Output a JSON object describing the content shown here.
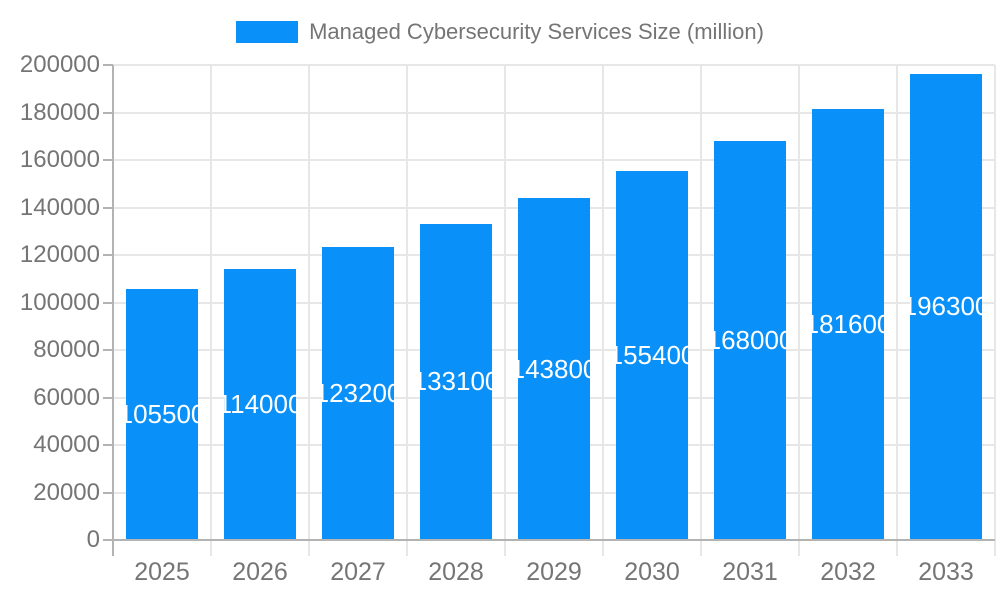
{
  "chart_data": {
    "type": "bar",
    "title": "Managed Cybersecurity Services Size (million)",
    "legend_position": "top",
    "legend_entries": [
      "Managed Cybersecurity Services Size (million)"
    ],
    "categories": [
      "2025",
      "2026",
      "2027",
      "2028",
      "2029",
      "2030",
      "2031",
      "2032",
      "2033"
    ],
    "values": [
      105500,
      114000,
      123200,
      133100,
      143800,
      155400,
      168000,
      181600,
      196300
    ],
    "xlabel": "",
    "ylabel": "",
    "ylim": [
      0,
      200000
    ],
    "ytick_step": 20000,
    "yticks": [
      0,
      20000,
      40000,
      60000,
      80000,
      100000,
      120000,
      140000,
      160000,
      180000,
      200000
    ],
    "grid": true,
    "value_labels_inside_bars": true,
    "colors": {
      "bar": "#0990f9",
      "value_label": "#ffffff",
      "axis_text": "#757575",
      "grid_line": "#e7e7e7",
      "axis_line": "#b3b3b3",
      "background": "#ffffff"
    }
  }
}
